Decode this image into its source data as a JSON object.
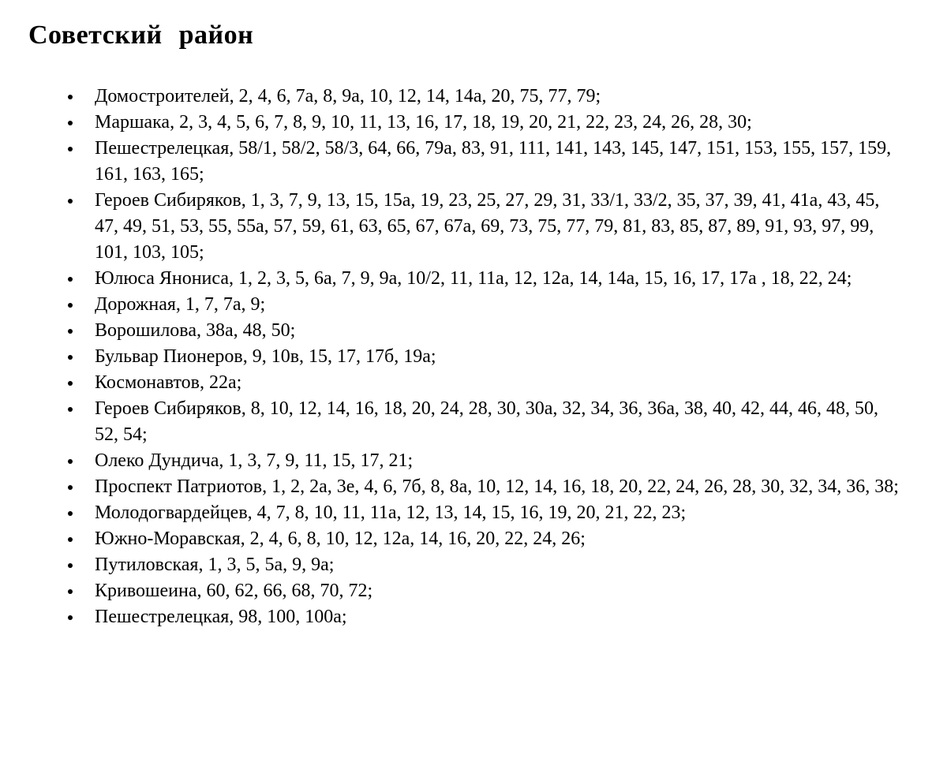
{
  "doc": {
    "title": "Советский район",
    "text_color": "#000000",
    "background_color": "#ffffff",
    "streets": [
      "Домостроителей, 2, 4, 6, 7а, 8, 9а, 10, 12, 14, 14а, 20, 75, 77, 79;",
      "Маршака, 2, 3, 4, 5, 6, 7, 8, 9, 10, 11, 13, 16, 17, 18, 19, 20, 21, 22, 23, 24, 26, 28, 30;",
      "Пешестрелецкая, 58/1, 58/2, 58/3, 64, 66, 79а, 83, 91, 111, 141, 143, 145, 147, 151, 153, 155, 157, 159, 161, 163, 165;",
      "Героев Сибиряков, 1, 3, 7, 9, 13, 15, 15а, 19, 23, 25, 27, 29, 31, 33/1, 33/2, 35, 37, 39, 41, 41а, 43, 45, 47, 49, 51, 53, 55, 55а, 57, 59, 61, 63, 65, 67, 67а, 69, 73, 75, 77, 79, 81, 83, 85, 87, 89, 91, 93, 97, 99, 101, 103, 105;",
      "Юлюса Янониса, 1, 2, 3, 5, 6а, 7, 9, 9а, 10/2, 11, 11а, 12, 12а, 14, 14а, 15, 16, 17, 17а , 18, 22, 24;",
      "Дорожная, 1, 7, 7а, 9;",
      "Ворошилова, 38а, 48, 50;",
      "Бульвар Пионеров, 9, 10в, 15, 17, 17б, 19а;",
      "Космонавтов, 22а;",
      "Героев Сибиряков, 8, 10, 12, 14, 16, 18, 20, 24, 28, 30, 30а, 32, 34, 36, 36а, 38, 40, 42, 44, 46, 48, 50, 52, 54;",
      "Олеко Дундича, 1, 3, 7, 9, 11, 15, 17, 21;",
      "Проспект Патриотов, 1, 2, 2а, 3е, 4, 6, 7б, 8, 8а, 10, 12, 14, 16, 18, 20, 22, 24, 26, 28, 30, 32, 34, 36, 38;",
      "Молодогвардейцев, 4, 7, 8, 10, 11, 11а, 12, 13, 14, 15, 16, 19, 20, 21, 22, 23;",
      "Южно-Моравская, 2, 4, 6, 8, 10, 12, 12а, 14, 16, 20, 22, 24, 26;",
      "Путиловская, 1, 3, 5, 5а, 9, 9а;",
      "Кривошеина, 60, 62, 66, 68, 70, 72;",
      "Пешестрелецкая, 98, 100, 100а;"
    ]
  }
}
